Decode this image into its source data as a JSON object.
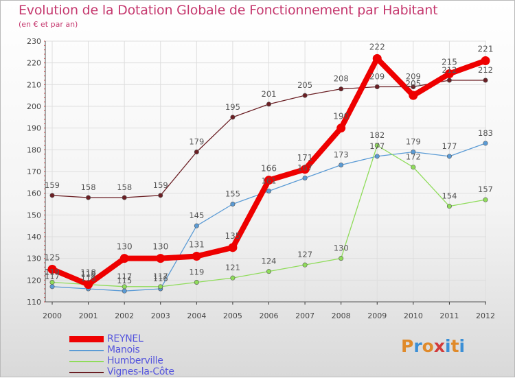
{
  "title": "Evolution de la Dotation Globale de Fonctionnement par Habitant",
  "subtitle": "(en € et par an)",
  "logo": {
    "text": "Proxiti",
    "colors": [
      "#e08a2a",
      "#3b8fd6",
      "#e08a2a",
      "#d23a3a",
      "#3b8fd6",
      "#e08a2a",
      "#3b8fd6"
    ]
  },
  "chart_data": {
    "type": "line",
    "title": "Evolution de la Dotation Globale de Fonctionnement par Habitant",
    "subtitle": "(en € et par an)",
    "xlabel": "",
    "ylabel": "",
    "ylim": [
      110,
      230
    ],
    "yticks": [
      110,
      120,
      130,
      140,
      150,
      160,
      170,
      180,
      190,
      200,
      210,
      220,
      230
    ],
    "grid": true,
    "legend_position": "bottom-left",
    "x": [
      "2000",
      "2001",
      "2002",
      "2003",
      "2004",
      "2005",
      "2006",
      "2007",
      "2008",
      "2009",
      "2010",
      "2011",
      "2012"
    ],
    "series": [
      {
        "name": "Vignes-la-Côte",
        "color": "#6b1f24",
        "values": [
          159,
          158,
          158,
          159,
          179,
          195,
          201,
          205,
          208,
          209,
          209,
          212,
          212
        ],
        "labels": [
          "159",
          "158",
          "158",
          "159",
          "179",
          "195",
          "201",
          "205",
          "208",
          "209",
          "209",
          "212",
          "212"
        ]
      },
      {
        "name": "Manois",
        "color": "#5b9bd5",
        "values": [
          117,
          116,
          115,
          116,
          145,
          155,
          161,
          167,
          173,
          177,
          179,
          177,
          183
        ],
        "labels": [
          "117",
          "116",
          "115",
          "116",
          "145",
          "155",
          "161",
          "167",
          "173",
          "177",
          "179",
          "177",
          "183"
        ]
      },
      {
        "name": "Humberville",
        "color": "#8fdc5a",
        "values": [
          119,
          118,
          117,
          117,
          119,
          121,
          124,
          127,
          130,
          182,
          172,
          154,
          157
        ],
        "labels": [
          "119",
          "118",
          "117",
          "117",
          "119",
          "121",
          "124",
          "127",
          "130",
          "182",
          "172",
          "154",
          "157"
        ]
      },
      {
        "name": "REYNEL",
        "color": "#ee0000",
        "values": [
          125,
          118,
          130,
          130,
          131,
          135,
          166,
          171,
          190,
          222,
          205,
          215,
          221
        ],
        "labels": [
          "125",
          "118",
          "130",
          "130",
          "131",
          "135",
          "166",
          "171",
          "190",
          "222",
          "205",
          "215",
          "221"
        ]
      }
    ]
  }
}
